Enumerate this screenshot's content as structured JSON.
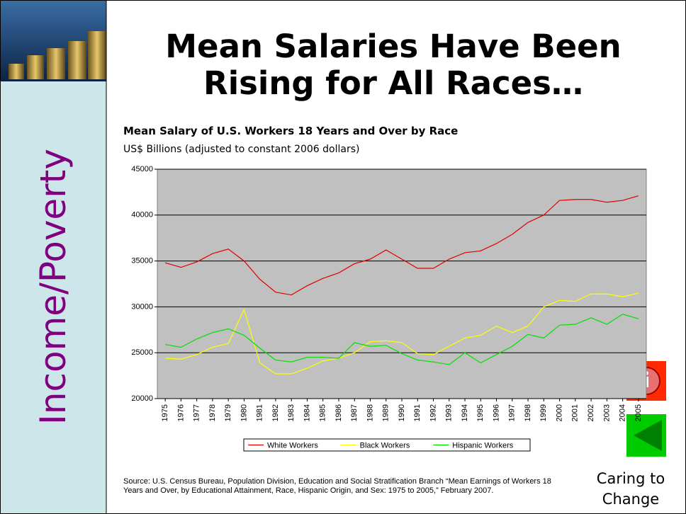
{
  "slide": {
    "title": "Mean Salaries Have Been Rising for All Races…",
    "sidebar_label": "Income/Poverty",
    "footer_label": "Caring to Change"
  },
  "chart_data": {
    "type": "line",
    "title": "Mean Salary of U.S. Workers 18 Years and Over by Race",
    "subtitle": "US$ Billions (adjusted to constant 2006 dollars)",
    "source": "Source: U.S. Census Bureau, Population Division, Education and Social Stratification Branch “Mean Earnings of Workers 18 Years and Over, by Educational Attainment, Race, Hispanic Origin, and Sex: 1975 to 2005,” February 2007.",
    "categories": [
      "1975",
      "1976",
      "1977",
      "1978",
      "1979",
      "1980",
      "1981",
      "1982",
      "1983",
      "1984",
      "1985",
      "1986",
      "1987",
      "1988",
      "1989",
      "1990",
      "1991",
      "1992",
      "1993",
      "1994",
      "1995",
      "1996",
      "1997",
      "1998",
      "1999",
      "2000",
      "2001",
      "2002",
      "2003",
      "2004",
      "2005"
    ],
    "series": [
      {
        "name": "White Workers",
        "color": "#e00000",
        "values": [
          34800,
          34300,
          34900,
          35800,
          36300,
          35000,
          33000,
          31600,
          31300,
          32300,
          33100,
          33700,
          34700,
          35200,
          36200,
          35200,
          34200,
          34200,
          35200,
          35900,
          36100,
          36900,
          37900,
          39200,
          40000,
          41600,
          41700,
          41700,
          41400,
          41600,
          42100
        ]
      },
      {
        "name": "Black Workers",
        "color": "#ffff00",
        "values": [
          24400,
          24300,
          24800,
          25600,
          26000,
          29700,
          23900,
          22700,
          22700,
          23300,
          24100,
          24400,
          25000,
          26200,
          26300,
          26100,
          24900,
          24800,
          25700,
          26600,
          26900,
          27900,
          27200,
          27900,
          30000,
          30700,
          30600,
          31400,
          31400,
          31100,
          31500
        ]
      },
      {
        "name": "Hispanic Workers",
        "color": "#00e000",
        "values": [
          25900,
          25600,
          26500,
          27200,
          27600,
          26900,
          25500,
          24200,
          24000,
          24500,
          24500,
          24400,
          26100,
          25700,
          25800,
          24900,
          24200,
          24000,
          23700,
          25000,
          23900,
          24800,
          25700,
          27000,
          26600,
          28000,
          28100,
          28800,
          28100,
          29200,
          28700
        ]
      }
    ],
    "ylim": [
      20000,
      45000
    ],
    "yticks": [
      20000,
      25000,
      30000,
      35000,
      40000,
      45000
    ],
    "grid": true,
    "legend": "bottom",
    "plot_background": "#c0c0c0"
  }
}
